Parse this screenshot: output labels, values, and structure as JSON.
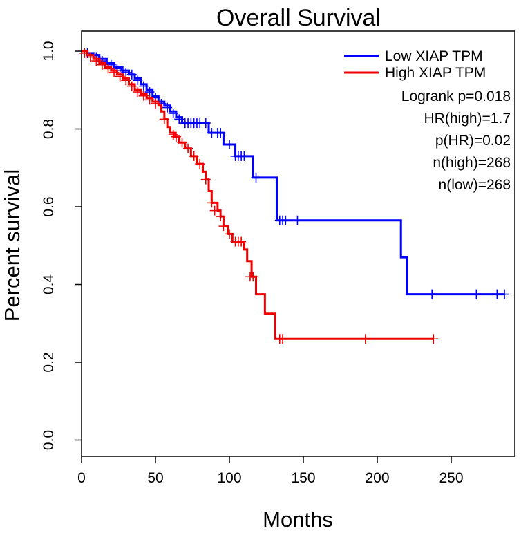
{
  "chart_data": {
    "type": "line",
    "title": "Overall Survival",
    "xlabel": "Months",
    "ylabel": "Percent survival",
    "xlim": [
      0,
      290
    ],
    "ylim": [
      0,
      1.0
    ],
    "x_ticks": [
      "0",
      "50",
      "100",
      "150",
      "200",
      "250"
    ],
    "y_ticks": [
      "0.0",
      "0.2",
      "0.4",
      "0.6",
      "0.8",
      "1.0"
    ],
    "legend": {
      "position": "top-right",
      "entries": [
        "Low XIAP TPM",
        "High XIAP TPM"
      ],
      "stats": [
        "Logrank p=0.018",
        "HR(high)=1.7",
        "p(HR)=0.02",
        "n(high)=268",
        "n(low)=268"
      ]
    },
    "series": [
      {
        "name": "Low XIAP TPM",
        "color": "#0000ff",
        "steps": [
          [
            0,
            1.0
          ],
          [
            4,
            0.995
          ],
          [
            8,
            0.99
          ],
          [
            12,
            0.98
          ],
          [
            17,
            0.97
          ],
          [
            22,
            0.96
          ],
          [
            27,
            0.95
          ],
          [
            32,
            0.94
          ],
          [
            36,
            0.93
          ],
          [
            40,
            0.915
          ],
          [
            44,
            0.9
          ],
          [
            48,
            0.885
          ],
          [
            52,
            0.87
          ],
          [
            56,
            0.86
          ],
          [
            60,
            0.845
          ],
          [
            64,
            0.83
          ],
          [
            68,
            0.815
          ],
          [
            86,
            0.79
          ],
          [
            96,
            0.76
          ],
          [
            104,
            0.73
          ],
          [
            116,
            0.675
          ],
          [
            132,
            0.565
          ],
          [
            216,
            0.47
          ],
          [
            220,
            0.375
          ],
          [
            286,
            0.375
          ]
        ],
        "censor": [
          [
            4,
            0.995
          ],
          [
            10,
            0.985
          ],
          [
            14,
            0.975
          ],
          [
            20,
            0.965
          ],
          [
            24,
            0.955
          ],
          [
            28,
            0.95
          ],
          [
            30,
            0.945
          ],
          [
            34,
            0.94
          ],
          [
            38,
            0.925
          ],
          [
            42,
            0.91
          ],
          [
            46,
            0.895
          ],
          [
            50,
            0.88
          ],
          [
            54,
            0.865
          ],
          [
            58,
            0.855
          ],
          [
            62,
            0.84
          ],
          [
            66,
            0.825
          ],
          [
            70,
            0.815
          ],
          [
            72,
            0.815
          ],
          [
            74,
            0.815
          ],
          [
            76,
            0.815
          ],
          [
            78,
            0.815
          ],
          [
            80,
            0.815
          ],
          [
            84,
            0.815
          ],
          [
            88,
            0.79
          ],
          [
            92,
            0.79
          ],
          [
            94,
            0.79
          ],
          [
            100,
            0.76
          ],
          [
            104,
            0.73
          ],
          [
            106,
            0.73
          ],
          [
            108,
            0.73
          ],
          [
            110,
            0.73
          ],
          [
            118,
            0.675
          ],
          [
            134,
            0.565
          ],
          [
            136,
            0.565
          ],
          [
            138,
            0.565
          ],
          [
            146,
            0.565
          ],
          [
            237,
            0.375
          ],
          [
            267,
            0.375
          ],
          [
            281,
            0.375
          ],
          [
            286,
            0.375
          ]
        ]
      },
      {
        "name": "High XIAP TPM",
        "color": "#ee0000",
        "steps": [
          [
            0,
            1.0
          ],
          [
            4,
            0.99
          ],
          [
            8,
            0.98
          ],
          [
            12,
            0.97
          ],
          [
            16,
            0.96
          ],
          [
            20,
            0.95
          ],
          [
            24,
            0.94
          ],
          [
            28,
            0.93
          ],
          [
            32,
            0.915
          ],
          [
            36,
            0.9
          ],
          [
            40,
            0.89
          ],
          [
            44,
            0.88
          ],
          [
            48,
            0.87
          ],
          [
            52,
            0.86
          ],
          [
            54,
            0.845
          ],
          [
            56,
            0.825
          ],
          [
            58,
            0.805
          ],
          [
            60,
            0.79
          ],
          [
            63,
            0.78
          ],
          [
            66,
            0.765
          ],
          [
            70,
            0.75
          ],
          [
            74,
            0.73
          ],
          [
            78,
            0.71
          ],
          [
            82,
            0.69
          ],
          [
            84,
            0.67
          ],
          [
            86,
            0.64
          ],
          [
            88,
            0.61
          ],
          [
            92,
            0.59
          ],
          [
            94,
            0.575
          ],
          [
            96,
            0.55
          ],
          [
            99,
            0.53
          ],
          [
            102,
            0.51
          ],
          [
            110,
            0.49
          ],
          [
            112,
            0.46
          ],
          [
            115,
            0.42
          ],
          [
            118,
            0.375
          ],
          [
            124,
            0.325
          ],
          [
            131,
            0.26
          ],
          [
            238,
            0.26
          ]
        ],
        "censor": [
          [
            2,
            0.995
          ],
          [
            6,
            0.985
          ],
          [
            10,
            0.975
          ],
          [
            14,
            0.965
          ],
          [
            18,
            0.955
          ],
          [
            22,
            0.945
          ],
          [
            26,
            0.935
          ],
          [
            30,
            0.925
          ],
          [
            34,
            0.91
          ],
          [
            38,
            0.895
          ],
          [
            42,
            0.885
          ],
          [
            46,
            0.875
          ],
          [
            50,
            0.865
          ],
          [
            56,
            0.825
          ],
          [
            62,
            0.785
          ],
          [
            64,
            0.78
          ],
          [
            68,
            0.765
          ],
          [
            72,
            0.75
          ],
          [
            76,
            0.73
          ],
          [
            80,
            0.71
          ],
          [
            84,
            0.67
          ],
          [
            88,
            0.61
          ],
          [
            90,
            0.59
          ],
          [
            94,
            0.575
          ],
          [
            96,
            0.55
          ],
          [
            100,
            0.53
          ],
          [
            104,
            0.51
          ],
          [
            106,
            0.51
          ],
          [
            108,
            0.51
          ],
          [
            114,
            0.42
          ],
          [
            116,
            0.42
          ],
          [
            134,
            0.26
          ],
          [
            136,
            0.26
          ],
          [
            192,
            0.26
          ],
          [
            238,
            0.26
          ]
        ]
      }
    ]
  }
}
